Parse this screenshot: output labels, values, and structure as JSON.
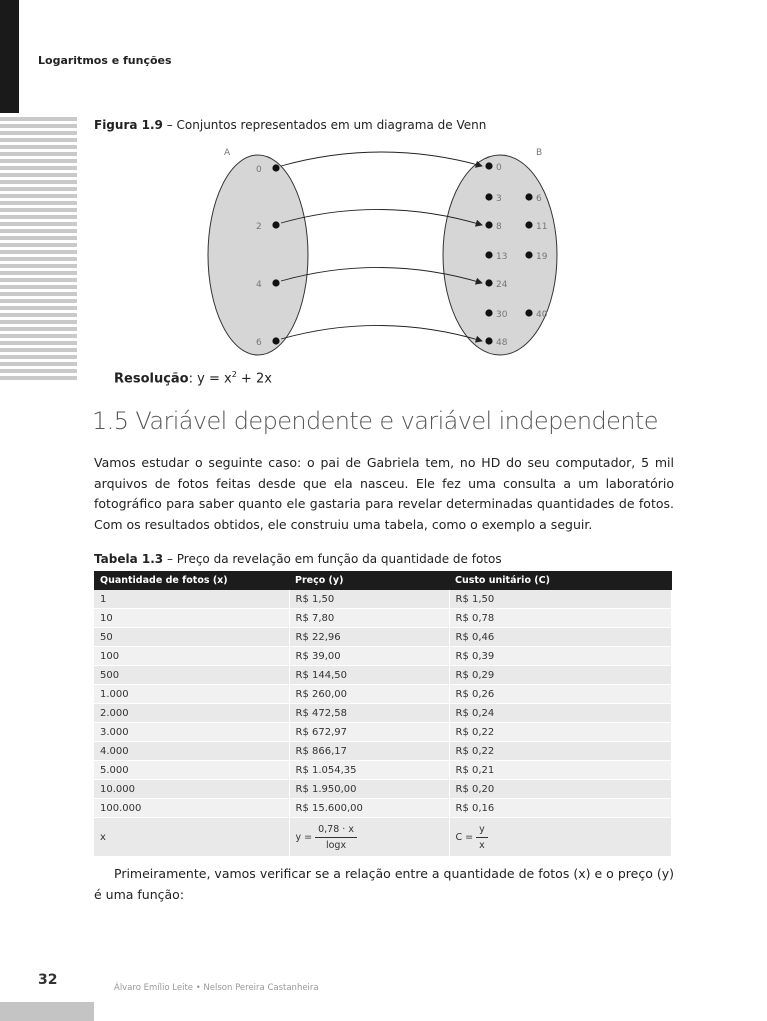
{
  "header": {
    "running_title": "Logaritmos e funções",
    "page_number": "32"
  },
  "figure": {
    "caption_label": "Figura 1.9",
    "caption_text": " – Conjuntos representados em um diagrama de Venn",
    "set_a_label": "A",
    "set_b_label": "B",
    "set_a_elements": [
      "0",
      "2",
      "4",
      "6"
    ],
    "set_b_elements": [
      "0",
      "3",
      "6",
      "8",
      "11",
      "13",
      "19",
      "24",
      "30",
      "40",
      "48"
    ],
    "mappings": [
      [
        "0",
        "0"
      ],
      [
        "2",
        "8"
      ],
      [
        "4",
        "24"
      ],
      [
        "6",
        "48"
      ]
    ]
  },
  "resolucao": {
    "label": "Resolução",
    "formula_prefix": ": y = x",
    "formula_exp": "2",
    "formula_suffix": " + 2x"
  },
  "section": {
    "title": "1.5 Variável dependente e variável independente"
  },
  "paragraph1": "Vamos estudar o seguinte caso: o pai de Gabriela tem, no HD do seu computador, 5 mil arquivos de fotos feitas desde que ela nasceu. Ele fez uma consulta a um laboratório fotográfico para saber quanto ele gastaria para revelar determinadas quantidades de fotos. Com os resultados obtidos, ele construiu uma tabela, como o exemplo a seguir.",
  "table": {
    "caption_label": "Tabela 1.3",
    "caption_text": " – Preço da revelação em função da quantidade de fotos",
    "headers": [
      "Quantidade de fotos (x)",
      "Preço (y)",
      "Custo unitário (C)"
    ],
    "rows": [
      [
        "1",
        "R$ 1,50",
        "R$ 1,50"
      ],
      [
        "10",
        "R$ 7,80",
        "R$ 0,78"
      ],
      [
        "50",
        "R$ 22,96",
        "R$ 0,46"
      ],
      [
        "100",
        "R$ 39,00",
        "R$ 0,39"
      ],
      [
        "500",
        "R$ 144,50",
        "R$ 0,29"
      ],
      [
        "1.000",
        "R$ 260,00",
        "R$ 0,26"
      ],
      [
        "2.000",
        "R$ 472,58",
        "R$ 0,24"
      ],
      [
        "3.000",
        "R$ 672,97",
        "R$ 0,22"
      ],
      [
        "4.000",
        "R$ 866,17",
        "R$ 0,22"
      ],
      [
        "5.000",
        "R$ 1.054,35",
        "R$ 0,21"
      ],
      [
        "10.000",
        "R$ 1.950,00",
        "R$ 0,20"
      ],
      [
        "100.000",
        "R$ 15.600,00",
        "R$ 0,16"
      ]
    ],
    "formula_row": {
      "x": "x",
      "price_lhs": "y =",
      "price_num": "0,78 · x",
      "price_den": "logx",
      "cost_lhs": "C =",
      "cost_num": "y",
      "cost_den": "x"
    }
  },
  "paragraph2": "Primeiramente, vamos verificar se a relação entre a quantidade de fotos (x) e o preço (y) é uma função:",
  "footer": {
    "authors": "Álvaro Emílio Leite  •  Nelson Pereira Castanheira"
  }
}
